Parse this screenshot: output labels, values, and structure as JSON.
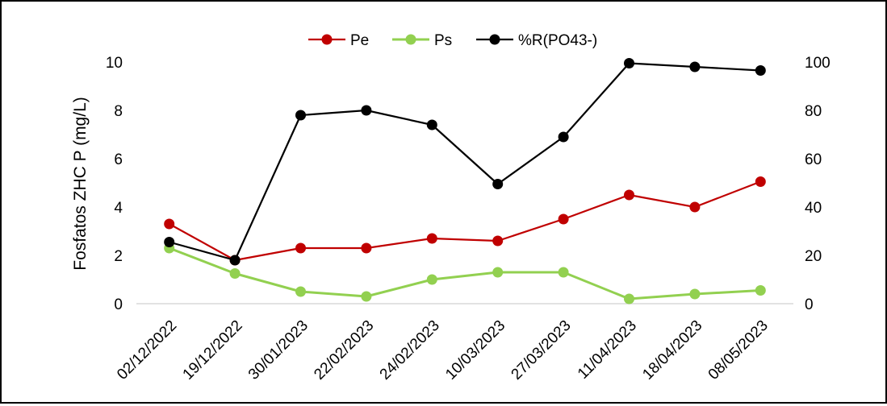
{
  "chart_data": {
    "type": "line",
    "categories": [
      "02/12/2022",
      "19/12/2022",
      "30/01/2023",
      "22/02/2023",
      "24/02/2023",
      "10/03/2023",
      "27/03/2023",
      "11/04/2023",
      "18/04/2023",
      "08/05/2023"
    ],
    "ylabel": "Fosfatos ZHC P (mg/L)",
    "ylim": [
      0,
      10
    ],
    "y_ticks": [
      "0",
      "2",
      "4",
      "6",
      "8",
      "10"
    ],
    "y2lim": [
      0,
      100
    ],
    "y2_ticks": [
      "0",
      "20",
      "40",
      "60",
      "80",
      "100"
    ],
    "legend_position": "top-center",
    "grid": false,
    "series": [
      {
        "name": "Pe",
        "axis": "left",
        "color": "#c00000",
        "values": [
          3.3,
          1.8,
          2.3,
          2.3,
          2.7,
          2.6,
          3.5,
          4.5,
          4.0,
          5.05
        ]
      },
      {
        "name": "Ps",
        "axis": "left",
        "color": "#92d050",
        "values": [
          2.3,
          1.25,
          0.5,
          0.3,
          1.0,
          1.3,
          1.3,
          0.2,
          0.4,
          0.55
        ]
      },
      {
        "name": "%R(PO43-)",
        "axis": "right",
        "color": "#000000",
        "values": [
          25.5,
          18,
          78,
          80,
          74,
          49.5,
          69,
          99.5,
          98,
          96.5
        ]
      }
    ]
  }
}
